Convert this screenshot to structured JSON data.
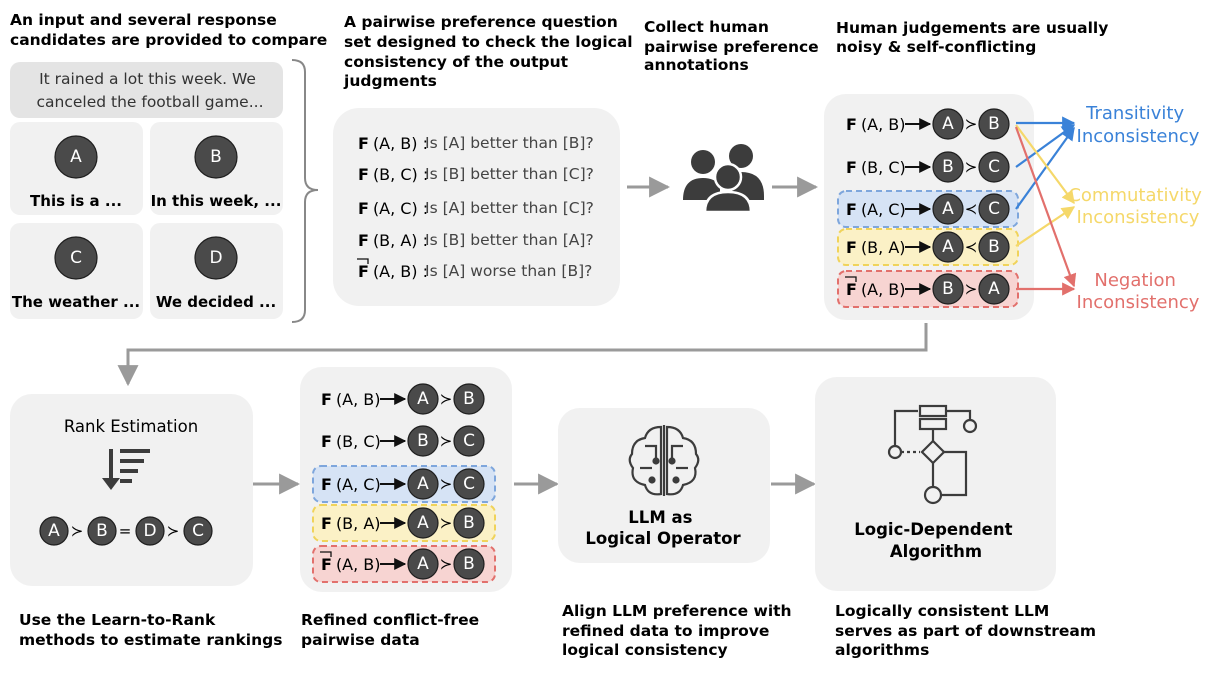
{
  "captions": {
    "input": [
      "An input and several response",
      "candidates are provided to compare"
    ],
    "questions": [
      "A pairwise preference question",
      "set designed to check the logical",
      "consistency of the output",
      "judgments"
    ],
    "collect": [
      "Collect human",
      "pairwise preference",
      "annotations"
    ],
    "noisy": [
      "Human judgements are usually",
      "noisy & self-conflicting"
    ],
    "rank": [
      "Use the Learn-to-Rank",
      "methods to estimate rankings"
    ],
    "refined": [
      "Refined conflict-free",
      "pairwise data"
    ],
    "llm": [
      "Align LLM preference with",
      "refined data to improve",
      "logical consistency"
    ],
    "algorithm": [
      "Logically consistent LLM",
      "serves as part of downstream",
      "algorithms"
    ]
  },
  "input": {
    "line1": "It rained a lot this week. We",
    "line2": "canceled the football game..."
  },
  "candidates": [
    {
      "id": "A",
      "text": "This is a ..."
    },
    {
      "id": "B",
      "text": "In this week, ..."
    },
    {
      "id": "C",
      "text": "The weather ..."
    },
    {
      "id": "D",
      "text": "We decided ..."
    }
  ],
  "questions": [
    {
      "f": "F",
      "neg": false,
      "args": "(A, B) :",
      "text": "Is [A] better than [B]?"
    },
    {
      "f": "F",
      "neg": false,
      "args": "(B, C) :",
      "text": "Is [B] better than [C]?"
    },
    {
      "f": "F",
      "neg": false,
      "args": "(A, C) :",
      "text": "Is [A] better than [C]?"
    },
    {
      "f": "F",
      "neg": false,
      "args": "(B, A) :",
      "text": "Is [B] better than [A]?"
    },
    {
      "f": "F",
      "neg": true,
      "args": "(A, B) :",
      "text": "Is [A] worse than [B]?"
    }
  ],
  "noisy": [
    {
      "f": "F",
      "neg": false,
      "args": "(A, B)",
      "left": "A",
      "op": "≻",
      "right": "B",
      "highlight": "none"
    },
    {
      "f": "F",
      "neg": false,
      "args": "(B, C)",
      "left": "B",
      "op": "≻",
      "right": "C",
      "highlight": "none"
    },
    {
      "f": "F",
      "neg": false,
      "args": "(A, C)",
      "left": "A",
      "op": "≺",
      "right": "C",
      "highlight": "blue"
    },
    {
      "f": "F",
      "neg": false,
      "args": "(B, A)",
      "left": "A",
      "op": "≺",
      "right": "B",
      "highlight": "yellow"
    },
    {
      "f": "F",
      "neg": true,
      "args": "(A, B)",
      "left": "B",
      "op": "≻",
      "right": "A",
      "highlight": "red"
    }
  ],
  "inconsistency": {
    "transitivity": [
      "Transitivity",
      "Inconsistency"
    ],
    "commutativity": [
      "Commutativity",
      "Inconsistency"
    ],
    "negation": [
      "Negation",
      "Inconsistency"
    ],
    "colors": {
      "blue": "#3a82d8",
      "yellow": "#f5d86a",
      "red": "#e2706c"
    }
  },
  "rank": {
    "title": "Rank Estimation",
    "sequence": [
      "A",
      "≻",
      "B",
      "=",
      "D",
      "≻",
      "C"
    ]
  },
  "refined": [
    {
      "f": "F",
      "neg": false,
      "args": "(A, B)",
      "left": "A",
      "op": "≻",
      "right": "B",
      "highlight": "none"
    },
    {
      "f": "F",
      "neg": false,
      "args": "(B, C)",
      "left": "B",
      "op": "≻",
      "right": "C",
      "highlight": "none"
    },
    {
      "f": "F",
      "neg": false,
      "args": "(A, C)",
      "left": "A",
      "op": "≻",
      "right": "C",
      "highlight": "blue"
    },
    {
      "f": "F",
      "neg": false,
      "args": "(B, A)",
      "left": "A",
      "op": "≻",
      "right": "B",
      "highlight": "yellow"
    },
    {
      "f": "F",
      "neg": true,
      "args": "(A, B)",
      "left": "A",
      "op": "≻",
      "right": "B",
      "highlight": "red"
    }
  ],
  "llm": {
    "line1": "LLM as",
    "line2": "Logical Operator"
  },
  "algorithm": {
    "line1": "Logic-Dependent",
    "line2": "Algorithm"
  }
}
